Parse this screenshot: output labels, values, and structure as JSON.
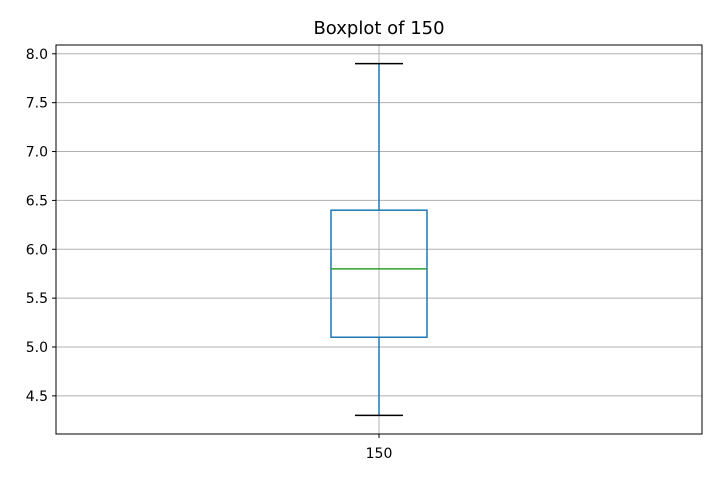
{
  "chart_data": {
    "type": "box",
    "title": "Boxplot of 150",
    "xlabel": "",
    "ylabel": "",
    "categories": [
      "150"
    ],
    "series": [
      {
        "whisker_low": 4.3,
        "q1": 5.1,
        "median": 5.8,
        "q3": 6.4,
        "whisker_high": 7.9
      }
    ],
    "ylim": [
      4.11,
      8.09
    ],
    "yticks": [
      4.5,
      5.0,
      5.5,
      6.0,
      6.5,
      7.0,
      7.5,
      8.0
    ],
    "ytick_labels": [
      "4.5",
      "5.0",
      "5.5",
      "6.0",
      "6.5",
      "7.0",
      "7.5",
      "8.0"
    ],
    "grid": true,
    "colors": {
      "box": "#1f77b4",
      "median": "#2ca02c",
      "caps": "#000000",
      "grid": "#b0b0b0"
    }
  }
}
